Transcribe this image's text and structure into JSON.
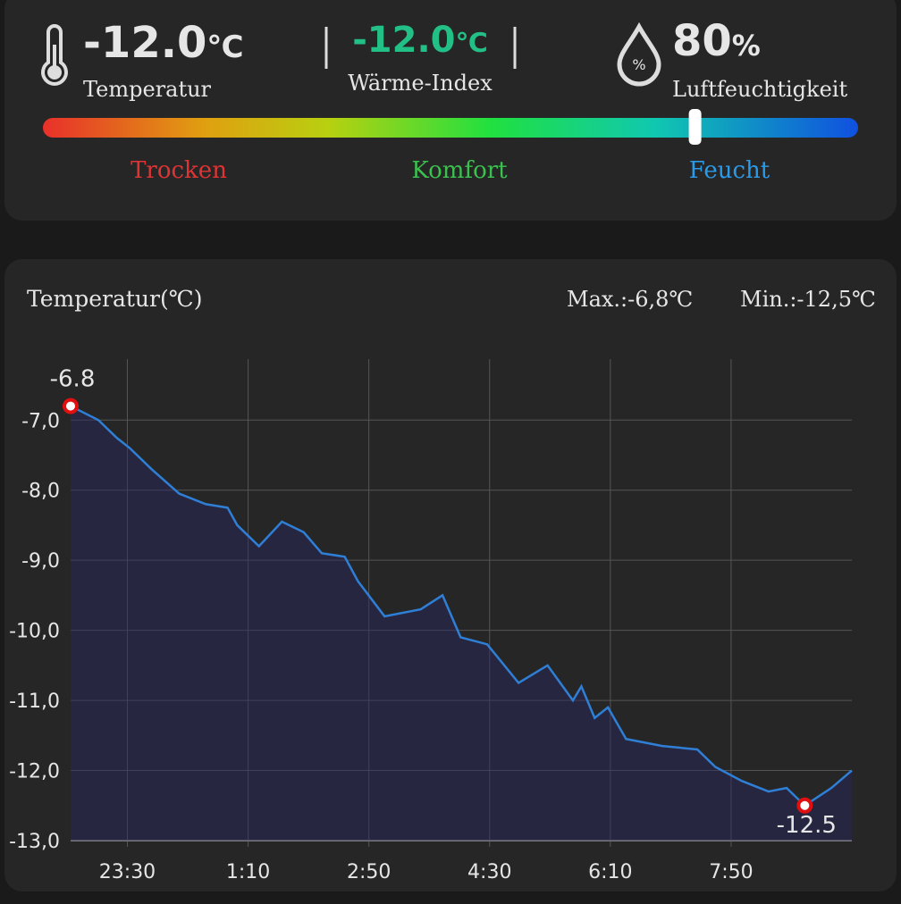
{
  "header": {
    "temperature": {
      "value": "-12.0",
      "unit": "℃",
      "label": "Temperatur"
    },
    "heat_index": {
      "value": "-12.0",
      "unit": "℃",
      "label": "Wärme-Index"
    },
    "humidity": {
      "value": 80,
      "unit": "%",
      "label": "Luftfeuchtigkeit"
    }
  },
  "humidity_bar": {
    "xlim": [
      0,
      100
    ],
    "labels": [
      "Trocken",
      "Komfort",
      "Feucht"
    ]
  },
  "chart_data": {
    "type": "area",
    "title": "Temperatur(℃)",
    "max_label": "Max.:-6,8℃",
    "min_label": "Min.:-12,5℃",
    "x": [
      "22:43",
      "23:06",
      "23:21",
      "23:32",
      "23:50",
      "0:13",
      "0:35",
      "0:53",
      "1:01",
      "1:19",
      "1:38",
      "1:56",
      "2:11",
      "2:30",
      "2:41",
      "3:03",
      "3:33",
      "3:51",
      "4:06",
      "4:28",
      "4:54",
      "5:18",
      "5:39",
      "5:46",
      "5:57",
      "6:08",
      "6:23",
      "6:53",
      "7:22",
      "7:37",
      "7:59",
      "8:21",
      "8:36",
      "8:51",
      "9:13",
      "9:30"
    ],
    "values": [
      -6.8,
      -7.0,
      -7.25,
      -7.4,
      -7.7,
      -8.05,
      -8.2,
      -8.25,
      -8.5,
      -8.8,
      -8.45,
      -8.6,
      -8.9,
      -8.95,
      -9.3,
      -9.8,
      -9.7,
      -9.5,
      -10.1,
      -10.2,
      -10.75,
      -10.5,
      -11.0,
      -10.8,
      -11.25,
      -11.1,
      -11.55,
      -11.65,
      -11.7,
      -11.95,
      -12.15,
      -12.3,
      -12.25,
      -12.5,
      -12.25,
      -12.0
    ],
    "color": "#2f7fd6",
    "xlim": [
      "22:43",
      "9:30"
    ],
    "xticks": [
      "23:30",
      "1:10",
      "2:50",
      "4:30",
      "6:10",
      "7:50"
    ],
    "ylim": [
      -13,
      -6.13
    ],
    "yticks": [
      {
        "value": -7,
        "label": "-7,0"
      },
      {
        "value": -8,
        "label": "-8,0"
      },
      {
        "value": -9,
        "label": "-9,0"
      },
      {
        "value": -10,
        "label": "-10,0"
      },
      {
        "value": -11,
        "label": "-11,0"
      },
      {
        "value": -12,
        "label": "-12,0"
      },
      {
        "value": -13,
        "label": "-13,0"
      }
    ],
    "grid": true,
    "annotations": [
      {
        "x": "22:43",
        "value": -6.8
      },
      {
        "x": "8:51",
        "value": -12.5
      }
    ]
  }
}
